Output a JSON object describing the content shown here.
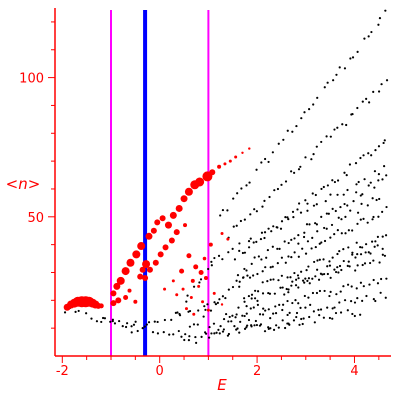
{
  "chart_data": {
    "type": "scatter",
    "title": "",
    "xlabel": "E",
    "ylabel": "<n>",
    "xlim": [
      -2.15,
      4.75
    ],
    "ylim": [
      0,
      125
    ],
    "x_ticks": [
      -2,
      0,
      2,
      4
    ],
    "x_tick_labels": [
      "-2",
      "0",
      "2",
      "4"
    ],
    "y_ticks": [
      50,
      100
    ],
    "y_tick_labels": [
      "50",
      "100"
    ],
    "grid": false,
    "legend": "none",
    "colors": {
      "axis": "#ff0000",
      "tick_label": "#ff0000",
      "black_points": "#000000",
      "red_points": "#ff0000",
      "magenta_lines": "#ff00ff",
      "blue_line": "#0000ff"
    },
    "vertical_lines": [
      {
        "x": -1.0,
        "color": "#ff00ff"
      },
      {
        "x": -0.3,
        "color": "#0000ff"
      },
      {
        "x": 1.0,
        "color": "#ff00ff"
      }
    ],
    "red_series": [
      {
        "x": -1.9,
        "y": 17.5,
        "r": 3.5
      },
      {
        "x": -1.82,
        "y": 18.5,
        "r": 4
      },
      {
        "x": -1.75,
        "y": 19,
        "r": 4.5
      },
      {
        "x": -1.68,
        "y": 19.5,
        "r": 5
      },
      {
        "x": -1.6,
        "y": 19.5,
        "r": 5.5
      },
      {
        "x": -1.52,
        "y": 19.5,
        "r": 5.5
      },
      {
        "x": -1.45,
        "y": 19.5,
        "r": 5
      },
      {
        "x": -1.38,
        "y": 19,
        "r": 4.5
      },
      {
        "x": -1.32,
        "y": 18.5,
        "r": 4
      },
      {
        "x": -1.26,
        "y": 18,
        "r": 3
      },
      {
        "x": -1.2,
        "y": 18,
        "r": 2.5
      },
      {
        "x": -0.95,
        "y": 19,
        "r": 3
      },
      {
        "x": -0.88,
        "y": 25,
        "r": 3.5
      },
      {
        "x": -0.8,
        "y": 27,
        "r": 4
      },
      {
        "x": -0.7,
        "y": 30.5,
        "r": 4
      },
      {
        "x": -0.6,
        "y": 33.5,
        "r": 4
      },
      {
        "x": -0.48,
        "y": 36.5,
        "r": 4
      },
      {
        "x": -0.38,
        "y": 39.5,
        "r": 4
      },
      {
        "x": -0.28,
        "y": 33,
        "r": 4
      },
      {
        "x": -0.22,
        "y": 43,
        "r": 3.5
      },
      {
        "x": -0.12,
        "y": 45,
        "r": 3
      },
      {
        "x": -0.05,
        "y": 48,
        "r": 3
      },
      {
        "x": 0.06,
        "y": 49.5,
        "r": 3
      },
      {
        "x": 0.18,
        "y": 47,
        "r": 3.5
      },
      {
        "x": 0.28,
        "y": 50.5,
        "r": 3.5
      },
      {
        "x": 0.4,
        "y": 53,
        "r": 3.5
      },
      {
        "x": 0.5,
        "y": 56.5,
        "r": 3.5
      },
      {
        "x": 0.6,
        "y": 59,
        "r": 4
      },
      {
        "x": 0.72,
        "y": 61.5,
        "r": 4.5
      },
      {
        "x": 0.82,
        "y": 62.5,
        "r": 4.5
      },
      {
        "x": 0.98,
        "y": 64.5,
        "r": 5
      },
      {
        "x": 1.08,
        "y": 66,
        "r": 3
      },
      {
        "x": 1.22,
        "y": 68,
        "r": 2
      },
      {
        "x": 1.34,
        "y": 69,
        "r": 1.5
      },
      {
        "x": 1.45,
        "y": 70,
        "r": 1.5
      },
      {
        "x": 1.56,
        "y": 71.5,
        "r": 1.5
      },
      {
        "x": 1.7,
        "y": 73,
        "r": 1.2
      },
      {
        "x": 1.84,
        "y": 74.5,
        "r": 1.2
      },
      {
        "x": -0.3,
        "y": 28,
        "r": 3
      },
      {
        "x": -0.2,
        "y": 31,
        "r": 3
      },
      {
        "x": -0.08,
        "y": 33.5,
        "r": 3
      },
      {
        "x": 0.02,
        "y": 36.5,
        "r": 3
      },
      {
        "x": 0.12,
        "y": 39,
        "r": 3
      },
      {
        "x": 0.25,
        "y": 41.5,
        "r": 3
      },
      {
        "x": 0.35,
        "y": 44.5,
        "r": 3
      },
      {
        "x": 0.45,
        "y": 30.5,
        "r": 2.5
      },
      {
        "x": 0.52,
        "y": 47,
        "r": 2
      },
      {
        "x": 0.6,
        "y": 36,
        "r": 2.5
      },
      {
        "x": 0.68,
        "y": 27,
        "r": 2
      },
      {
        "x": 0.74,
        "y": 32,
        "r": 2.5
      },
      {
        "x": 0.85,
        "y": 30,
        "r": 2.5
      },
      {
        "x": 0.95,
        "y": 28,
        "r": 2
      },
      {
        "x": -0.95,
        "y": 22.5,
        "r": 3
      },
      {
        "x": -0.85,
        "y": 20,
        "r": 3
      },
      {
        "x": -0.7,
        "y": 21,
        "r": 2.5
      },
      {
        "x": -0.62,
        "y": 23.5,
        "r": 2
      },
      {
        "x": -0.5,
        "y": 19.5,
        "r": 2
      },
      {
        "x": -0.4,
        "y": 28.5,
        "r": 3
      },
      {
        "x": -0.35,
        "y": 31,
        "r": 3
      },
      {
        "x": 0.35,
        "y": 22,
        "r": 1.5
      },
      {
        "x": 0.48,
        "y": 24,
        "r": 1.5
      },
      {
        "x": 0.55,
        "y": 17,
        "r": 1.5
      },
      {
        "x": 0.65,
        "y": 21,
        "r": 1.5
      },
      {
        "x": 0.8,
        "y": 25,
        "r": 1.5
      },
      {
        "x": 0.88,
        "y": 19.5,
        "r": 1.5
      },
      {
        "x": 1.0,
        "y": 16.5,
        "r": 1.5
      },
      {
        "x": 1.12,
        "y": 22.5,
        "r": 1.5
      },
      {
        "x": 1.28,
        "y": 18.5,
        "r": 1.2
      },
      {
        "x": 1.4,
        "y": 42,
        "r": 1.5
      },
      {
        "x": 1.28,
        "y": 44,
        "r": 1.5
      },
      {
        "x": 0.92,
        "y": 35,
        "r": 1.8
      },
      {
        "x": 0.28,
        "y": 27,
        "r": 1.5
      },
      {
        "x": 0.1,
        "y": 24,
        "r": 1.5
      },
      {
        "x": 0.7,
        "y": 15,
        "r": 1.5
      },
      {
        "x": 1.05,
        "y": 40,
        "r": 2
      }
    ],
    "black_bands": [
      {
        "x0": -2.0,
        "x1": -0.5,
        "y0": 16.5,
        "y1": 10,
        "n": 14
      },
      {
        "x0": -1.2,
        "x1": 0.8,
        "y0": 14,
        "y1": 6,
        "n": 18
      },
      {
        "x0": -0.6,
        "x1": 1.4,
        "y0": 9,
        "y1": 20,
        "n": 18
      },
      {
        "x0": 1.2,
        "x1": 4.7,
        "y0": 49,
        "y1": 124,
        "n": 38
      },
      {
        "x0": 1.4,
        "x1": 4.7,
        "y0": 43,
        "y1": 99,
        "n": 40
      },
      {
        "x0": 1.5,
        "x1": 4.7,
        "y0": 35,
        "y1": 78,
        "n": 40
      },
      {
        "x0": 1.6,
        "x1": 4.7,
        "y0": 30,
        "y1": 65,
        "n": 40
      },
      {
        "x0": 1.6,
        "x1": 4.7,
        "y0": 26,
        "y1": 53,
        "n": 40
      },
      {
        "x0": 1.7,
        "x1": 4.7,
        "y0": 22,
        "y1": 44,
        "n": 38
      },
      {
        "x0": 1.6,
        "x1": 4.7,
        "y0": 18,
        "y1": 36,
        "n": 38
      },
      {
        "x0": 1.3,
        "x1": 4.7,
        "y0": 14,
        "y1": 28,
        "n": 40
      },
      {
        "x0": 1.0,
        "x1": 4.7,
        "y0": 11,
        "y1": 22,
        "n": 40
      },
      {
        "x0": 0.9,
        "x1": 4.2,
        "y0": 8,
        "y1": 16,
        "n": 34
      },
      {
        "x0": 0.6,
        "x1": 3.0,
        "y0": 7,
        "y1": 12,
        "n": 24
      },
      {
        "x0": 1.0,
        "x1": 4.7,
        "y0": 33,
        "y1": 68,
        "n": 30
      },
      {
        "x0": 0.4,
        "x1": 1.8,
        "y0": 6,
        "y1": 30,
        "n": 16
      },
      {
        "x0": 0.3,
        "x1": 1.2,
        "y0": 14,
        "y1": 36,
        "n": 10
      },
      {
        "x0": 2.5,
        "x1": 4.6,
        "y0": 24,
        "y1": 40,
        "n": 30
      },
      {
        "x0": 2.8,
        "x1": 4.6,
        "y0": 40,
        "y1": 58,
        "n": 18
      }
    ]
  }
}
